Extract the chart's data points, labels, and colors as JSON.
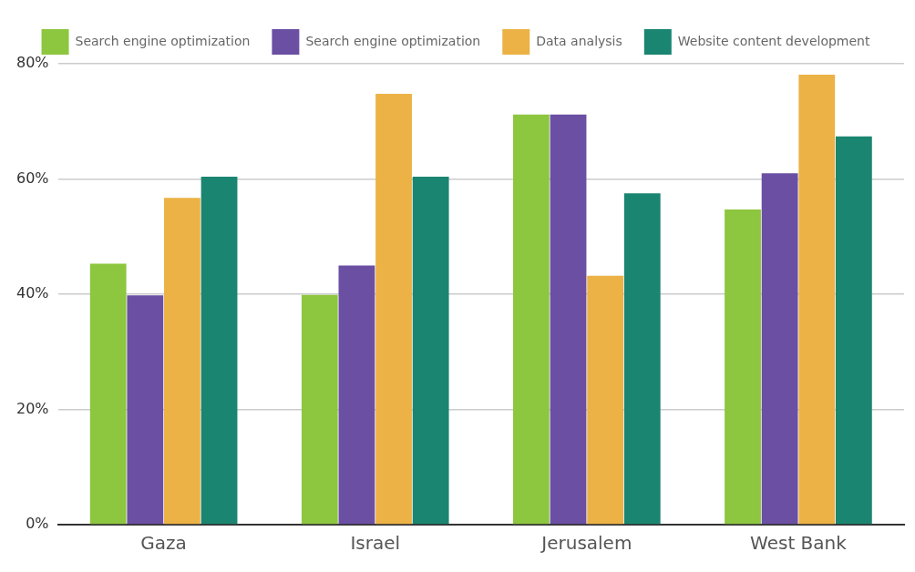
{
  "chart_data": {
    "type": "bar",
    "categories": [
      "Gaza",
      "Israel",
      "Jerusalem",
      "West Bank"
    ],
    "series": [
      {
        "name": "Search engine optimization",
        "color": "#8dc63f",
        "values": [
          45.3,
          39.9,
          71.2,
          54.7
        ]
      },
      {
        "name": "Search engine optimization",
        "color": "#6a4fa3",
        "values": [
          39.8,
          45,
          71.2,
          61
        ]
      },
      {
        "name": "Data analysis",
        "color": "#ecb246",
        "values": [
          56.7,
          74.8,
          43.2,
          78.1
        ]
      },
      {
        "name": "Website content development",
        "color": "#1a8570",
        "values": [
          60.4,
          60.4,
          57.5,
          67.4
        ]
      }
    ],
    "ylim": [
      0,
      80
    ],
    "yticks": [
      {
        "value": 0,
        "label": "0%"
      },
      {
        "value": 20,
        "label": "20%"
      },
      {
        "value": 40,
        "label": "40%"
      },
      {
        "value": 60,
        "label": "60%"
      },
      {
        "value": 80,
        "label": "80%"
      }
    ],
    "grid": "y",
    "legend": "top"
  }
}
